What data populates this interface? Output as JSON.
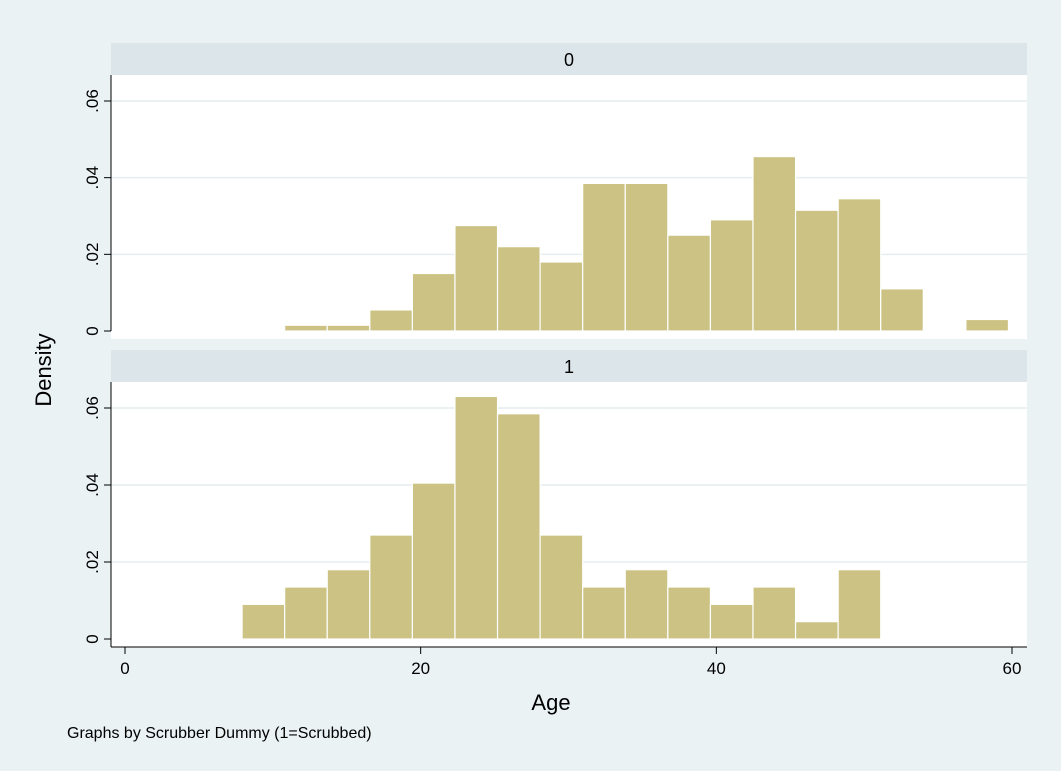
{
  "chart_data": {
    "type": "bar",
    "subtype": "histogram",
    "xlabel": "Age",
    "ylabel": "Density",
    "note": "Graphs by Scrubber Dummy (1=Scrubbed)",
    "xlim": [
      0,
      60
    ],
    "ylim": [
      0,
      0.065
    ],
    "xticks": [
      0,
      20,
      40,
      60
    ],
    "xtick_labels": [
      "0",
      "20",
      "40",
      "60"
    ],
    "yticks": [
      0,
      0.02,
      0.04,
      0.06
    ],
    "ytick_labels": [
      "0",
      ".02",
      ".04",
      ".06"
    ],
    "grid": true,
    "colors": {
      "bar_fill": "#cbc283",
      "bar_edge": "#ffffff",
      "panel_header": "#dce6ea",
      "outer_background": "#eaf2f3",
      "plot_background": "#ffffff",
      "gridline": "#e6edef"
    },
    "bin_width": 2.88,
    "panels": [
      {
        "title": "0",
        "bins": [
          {
            "start": 10.8,
            "density": 0.0015
          },
          {
            "start": 13.68,
            "density": 0.0015
          },
          {
            "start": 16.56,
            "density": 0.0055
          },
          {
            "start": 19.44,
            "density": 0.015
          },
          {
            "start": 22.32,
            "density": 0.0275
          },
          {
            "start": 25.2,
            "density": 0.022
          },
          {
            "start": 28.08,
            "density": 0.018
          },
          {
            "start": 30.96,
            "density": 0.0385
          },
          {
            "start": 33.84,
            "density": 0.0385
          },
          {
            "start": 36.72,
            "density": 0.025
          },
          {
            "start": 39.6,
            "density": 0.029
          },
          {
            "start": 42.48,
            "density": 0.0455
          },
          {
            "start": 45.36,
            "density": 0.0315
          },
          {
            "start": 48.24,
            "density": 0.0345
          },
          {
            "start": 51.12,
            "density": 0.011
          },
          {
            "start": 54.0,
            "density": 0
          },
          {
            "start": 56.88,
            "density": 0.003
          }
        ]
      },
      {
        "title": "1",
        "bins": [
          {
            "start": 7.92,
            "density": 0.009
          },
          {
            "start": 10.8,
            "density": 0.0135
          },
          {
            "start": 13.68,
            "density": 0.018
          },
          {
            "start": 16.56,
            "density": 0.027
          },
          {
            "start": 19.44,
            "density": 0.0405
          },
          {
            "start": 22.32,
            "density": 0.063
          },
          {
            "start": 25.2,
            "density": 0.0585
          },
          {
            "start": 28.08,
            "density": 0.027
          },
          {
            "start": 30.96,
            "density": 0.0135
          },
          {
            "start": 33.84,
            "density": 0.018
          },
          {
            "start": 36.72,
            "density": 0.0135
          },
          {
            "start": 39.6,
            "density": 0.009
          },
          {
            "start": 42.48,
            "density": 0.0135
          },
          {
            "start": 45.36,
            "density": 0.0045
          },
          {
            "start": 48.24,
            "density": 0.018
          }
        ]
      }
    ]
  }
}
